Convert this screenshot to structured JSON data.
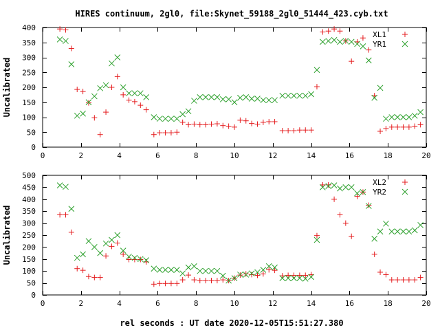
{
  "title": "HIRES continuum, 2gl0, file:Skynet_59188_2gl0_51444_423.cyb.txt",
  "xlabel": "rel seconds : UT date 2020-12-05T15:51:27.380",
  "chart_data": [
    {
      "type": "scatter",
      "ylabel": "Uncalibrated",
      "xlim": [
        0,
        20
      ],
      "ylim": [
        0,
        400
      ],
      "xticks": [
        0,
        2,
        4,
        6,
        8,
        10,
        12,
        14,
        16,
        18,
        20
      ],
      "yticks": [
        0,
        50,
        100,
        150,
        200,
        250,
        300,
        350,
        400
      ],
      "legend": "top-right",
      "series": [
        {
          "name": "XL1",
          "color": "#e41a1c",
          "marker": "plus",
          "points": [
            [
              0.9,
              395
            ],
            [
              1.2,
              392
            ],
            [
              1.5,
              330
            ],
            [
              1.8,
              193
            ],
            [
              2.1,
              186
            ],
            [
              2.4,
              148
            ],
            [
              2.7,
              98
            ],
            [
              3.0,
              42
            ],
            [
              3.3,
              117
            ],
            [
              3.6,
              200
            ],
            [
              3.9,
              236
            ],
            [
              4.2,
              175
            ],
            [
              4.5,
              157
            ],
            [
              4.8,
              152
            ],
            [
              5.1,
              140
            ],
            [
              5.4,
              125
            ],
            [
              5.8,
              42
            ],
            [
              6.1,
              48
            ],
            [
              6.4,
              48
            ],
            [
              6.7,
              48
            ],
            [
              7.0,
              50
            ],
            [
              7.3,
              83
            ],
            [
              7.6,
              75
            ],
            [
              7.9,
              77
            ],
            [
              8.2,
              75
            ],
            [
              8.5,
              75
            ],
            [
              8.8,
              77
            ],
            [
              9.1,
              78
            ],
            [
              9.4,
              72
            ],
            [
              9.7,
              70
            ],
            [
              10.0,
              67
            ],
            [
              10.3,
              90
            ],
            [
              10.6,
              88
            ],
            [
              10.9,
              79
            ],
            [
              11.2,
              77
            ],
            [
              11.5,
              83
            ],
            [
              11.8,
              85
            ],
            [
              12.1,
              85
            ],
            [
              12.5,
              55
            ],
            [
              12.8,
              55
            ],
            [
              13.1,
              55
            ],
            [
              13.4,
              57
            ],
            [
              13.7,
              57
            ],
            [
              14.0,
              57
            ],
            [
              14.3,
              202
            ],
            [
              14.6,
              385
            ],
            [
              14.9,
              388
            ],
            [
              15.2,
              395
            ],
            [
              15.5,
              388
            ],
            [
              15.8,
              355
            ],
            [
              16.1,
              287
            ],
            [
              16.4,
              352
            ],
            [
              16.7,
              365
            ],
            [
              17.0,
              325
            ],
            [
              17.3,
              172
            ],
            [
              17.6,
              53
            ],
            [
              17.9,
              62
            ],
            [
              18.2,
              67
            ],
            [
              18.5,
              67
            ],
            [
              18.8,
              67
            ],
            [
              19.1,
              67
            ],
            [
              19.4,
              70
            ],
            [
              19.7,
              75
            ]
          ]
        },
        {
          "name": "YR1",
          "color": "#2ca02c",
          "marker": "cross",
          "points": [
            [
              0.9,
              360
            ],
            [
              1.2,
              355
            ],
            [
              1.5,
              277
            ],
            [
              1.8,
              105
            ],
            [
              2.1,
              112
            ],
            [
              2.4,
              150
            ],
            [
              2.7,
              170
            ],
            [
              3.0,
              197
            ],
            [
              3.3,
              207
            ],
            [
              3.6,
              280
            ],
            [
              3.9,
              300
            ],
            [
              4.2,
              200
            ],
            [
              4.5,
              180
            ],
            [
              4.8,
              180
            ],
            [
              5.1,
              180
            ],
            [
              5.4,
              167
            ],
            [
              5.8,
              100
            ],
            [
              6.1,
              95
            ],
            [
              6.4,
              95
            ],
            [
              6.7,
              95
            ],
            [
              7.0,
              95
            ],
            [
              7.3,
              110
            ],
            [
              7.6,
              120
            ],
            [
              7.9,
              155
            ],
            [
              8.2,
              167
            ],
            [
              8.5,
              167
            ],
            [
              8.8,
              167
            ],
            [
              9.1,
              167
            ],
            [
              9.4,
              160
            ],
            [
              9.7,
              160
            ],
            [
              10.0,
              150
            ],
            [
              10.3,
              165
            ],
            [
              10.6,
              167
            ],
            [
              10.9,
              162
            ],
            [
              11.2,
              162
            ],
            [
              11.5,
              157
            ],
            [
              11.8,
              157
            ],
            [
              12.1,
              157
            ],
            [
              12.5,
              172
            ],
            [
              12.8,
              172
            ],
            [
              13.1,
              172
            ],
            [
              13.4,
              172
            ],
            [
              13.7,
              172
            ],
            [
              14.0,
              177
            ],
            [
              14.3,
              258
            ],
            [
              14.6,
              352
            ],
            [
              14.9,
              355
            ],
            [
              15.2,
              358
            ],
            [
              15.5,
              352
            ],
            [
              15.8,
              355
            ],
            [
              16.1,
              352
            ],
            [
              16.4,
              345
            ],
            [
              16.7,
              337
            ],
            [
              17.0,
              290
            ],
            [
              17.3,
              165
            ],
            [
              17.6,
              198
            ],
            [
              17.9,
              95
            ],
            [
              18.2,
              100
            ],
            [
              18.5,
              100
            ],
            [
              18.8,
              100
            ],
            [
              19.1,
              100
            ],
            [
              19.4,
              105
            ],
            [
              19.7,
              117
            ]
          ]
        }
      ]
    },
    {
      "type": "scatter",
      "ylabel": "Uncalibrated",
      "xlim": [
        0,
        20
      ],
      "ylim": [
        0,
        500
      ],
      "xticks": [
        0,
        2,
        4,
        6,
        8,
        10,
        12,
        14,
        16,
        18,
        20
      ],
      "yticks": [
        0,
        50,
        100,
        150,
        200,
        250,
        300,
        350,
        400,
        450,
        500
      ],
      "legend": "top-right",
      "series": [
        {
          "name": "XL2",
          "color": "#e41a1c",
          "marker": "plus",
          "points": [
            [
              0.9,
              335
            ],
            [
              1.2,
              335
            ],
            [
              1.5,
              262
            ],
            [
              1.8,
              110
            ],
            [
              2.1,
              103
            ],
            [
              2.4,
              77
            ],
            [
              2.7,
              73
            ],
            [
              3.0,
              73
            ],
            [
              3.3,
              163
            ],
            [
              3.6,
              203
            ],
            [
              3.9,
              217
            ],
            [
              4.2,
              170
            ],
            [
              4.5,
              148
            ],
            [
              4.8,
              148
            ],
            [
              5.1,
              148
            ],
            [
              5.4,
              138
            ],
            [
              5.8,
              45
            ],
            [
              6.1,
              48
            ],
            [
              6.4,
              48
            ],
            [
              6.7,
              48
            ],
            [
              7.0,
              48
            ],
            [
              7.3,
              63
            ],
            [
              7.6,
              83
            ],
            [
              7.9,
              63
            ],
            [
              8.2,
              60
            ],
            [
              8.5,
              60
            ],
            [
              8.8,
              60
            ],
            [
              9.1,
              60
            ],
            [
              9.4,
              63
            ],
            [
              9.7,
              60
            ],
            [
              10.0,
              70
            ],
            [
              10.3,
              83
            ],
            [
              10.6,
              88
            ],
            [
              10.9,
              85
            ],
            [
              11.2,
              82
            ],
            [
              11.5,
              88
            ],
            [
              11.8,
              105
            ],
            [
              12.1,
              103
            ],
            [
              12.5,
              80
            ],
            [
              12.8,
              82
            ],
            [
              13.1,
              82
            ],
            [
              13.4,
              82
            ],
            [
              13.7,
              82
            ],
            [
              14.0,
              85
            ],
            [
              14.3,
              248
            ],
            [
              14.6,
              460
            ],
            [
              14.9,
              460
            ],
            [
              15.2,
              400
            ],
            [
              15.5,
              335
            ],
            [
              15.8,
              300
            ],
            [
              16.1,
              245
            ],
            [
              16.4,
              412
            ],
            [
              16.7,
              430
            ],
            [
              17.0,
              375
            ],
            [
              17.3,
              170
            ],
            [
              17.6,
              95
            ],
            [
              17.9,
              85
            ],
            [
              18.2,
              63
            ],
            [
              18.5,
              63
            ],
            [
              18.8,
              63
            ],
            [
              19.1,
              63
            ],
            [
              19.4,
              63
            ],
            [
              19.7,
              73
            ]
          ]
        },
        {
          "name": "YR2",
          "color": "#2ca02c",
          "marker": "cross",
          "points": [
            [
              0.9,
              458
            ],
            [
              1.2,
              452
            ],
            [
              1.5,
              360
            ],
            [
              1.8,
              155
            ],
            [
              2.1,
              170
            ],
            [
              2.4,
              225
            ],
            [
              2.7,
              200
            ],
            [
              3.0,
              175
            ],
            [
              3.3,
              215
            ],
            [
              3.6,
              230
            ],
            [
              3.9,
              250
            ],
            [
              4.2,
              185
            ],
            [
              4.5,
              160
            ],
            [
              4.8,
              155
            ],
            [
              5.1,
              150
            ],
            [
              5.4,
              145
            ],
            [
              5.8,
              110
            ],
            [
              6.1,
              105
            ],
            [
              6.4,
              105
            ],
            [
              6.7,
              105
            ],
            [
              7.0,
              105
            ],
            [
              7.3,
              90
            ],
            [
              7.6,
              115
            ],
            [
              7.9,
              120
            ],
            [
              8.2,
              100
            ],
            [
              8.5,
              100
            ],
            [
              8.8,
              100
            ],
            [
              9.1,
              100
            ],
            [
              9.4,
              80
            ],
            [
              9.7,
              60
            ],
            [
              10.0,
              70
            ],
            [
              10.3,
              85
            ],
            [
              10.6,
              85
            ],
            [
              10.9,
              90
            ],
            [
              11.2,
              95
            ],
            [
              11.5,
              105
            ],
            [
              11.8,
              120
            ],
            [
              12.1,
              115
            ],
            [
              12.5,
              70
            ],
            [
              12.8,
              70
            ],
            [
              13.1,
              70
            ],
            [
              13.4,
              70
            ],
            [
              13.7,
              68
            ],
            [
              14.0,
              75
            ],
            [
              14.3,
              230
            ],
            [
              14.6,
              450
            ],
            [
              14.9,
              455
            ],
            [
              15.2,
              458
            ],
            [
              15.5,
              445
            ],
            [
              15.8,
              450
            ],
            [
              16.1,
              450
            ],
            [
              16.4,
              425
            ],
            [
              16.7,
              430
            ],
            [
              17.0,
              372
            ],
            [
              17.3,
              235
            ],
            [
              17.6,
              265
            ],
            [
              17.9,
              298
            ],
            [
              18.2,
              265
            ],
            [
              18.5,
              265
            ],
            [
              18.8,
              265
            ],
            [
              19.1,
              265
            ],
            [
              19.4,
              270
            ],
            [
              19.7,
              292
            ]
          ]
        }
      ]
    }
  ]
}
